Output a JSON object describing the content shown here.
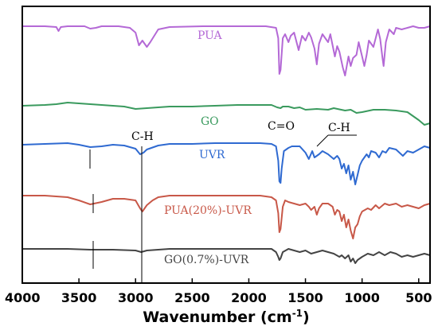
{
  "chart_data": {
    "type": "line",
    "title": "",
    "xlabel": "Wavenumber (cm",
    "xlabel_sup": "-1",
    "xlabel_end": ")",
    "ylabel": "",
    "xlim": [
      4000,
      400
    ],
    "x_ticks": [
      4000,
      3500,
      3000,
      2500,
      2000,
      1500,
      1000,
      500
    ],
    "y_axis_values_shown": false,
    "grid": false,
    "legend": "none",
    "series": [
      {
        "name": "PUA",
        "color": "#b469d6",
        "offset": 86,
        "points": [
          [
            4000,
            0
          ],
          [
            3800,
            0
          ],
          [
            3700,
            -1
          ],
          [
            3680,
            -6
          ],
          [
            3660,
            -1
          ],
          [
            3600,
            0
          ],
          [
            3450,
            0
          ],
          [
            3400,
            -3
          ],
          [
            3350,
            -2
          ],
          [
            3300,
            0
          ],
          [
            3150,
            0
          ],
          [
            3050,
            -2
          ],
          [
            3000,
            -8
          ],
          [
            2970,
            -24
          ],
          [
            2940,
            -18
          ],
          [
            2900,
            -26
          ],
          [
            2870,
            -20
          ],
          [
            2800,
            -4
          ],
          [
            2700,
            -1
          ],
          [
            2400,
            0
          ],
          [
            2000,
            0
          ],
          [
            1850,
            0
          ],
          [
            1760,
            -2
          ],
          [
            1740,
            -15
          ],
          [
            1730,
            -60
          ],
          [
            1720,
            -55
          ],
          [
            1700,
            -15
          ],
          [
            1680,
            -10
          ],
          [
            1650,
            -20
          ],
          [
            1630,
            -12
          ],
          [
            1600,
            -8
          ],
          [
            1560,
            -30
          ],
          [
            1530,
            -12
          ],
          [
            1500,
            -18
          ],
          [
            1470,
            -8
          ],
          [
            1450,
            -14
          ],
          [
            1420,
            -28
          ],
          [
            1400,
            -48
          ],
          [
            1380,
            -22
          ],
          [
            1350,
            -10
          ],
          [
            1300,
            -20
          ],
          [
            1280,
            -10
          ],
          [
            1240,
            -38
          ],
          [
            1220,
            -25
          ],
          [
            1200,
            -32
          ],
          [
            1170,
            -52
          ],
          [
            1150,
            -62
          ],
          [
            1120,
            -38
          ],
          [
            1100,
            -50
          ],
          [
            1080,
            -40
          ],
          [
            1050,
            -36
          ],
          [
            1030,
            -20
          ],
          [
            1000,
            -38
          ],
          [
            980,
            -50
          ],
          [
            960,
            -36
          ],
          [
            940,
            -18
          ],
          [
            900,
            -26
          ],
          [
            860,
            -4
          ],
          [
            840,
            -16
          ],
          [
            820,
            -40
          ],
          [
            810,
            -50
          ],
          [
            790,
            -20
          ],
          [
            760,
            -4
          ],
          [
            720,
            -10
          ],
          [
            700,
            -2
          ],
          [
            650,
            -4
          ],
          [
            600,
            -2
          ],
          [
            550,
            0
          ],
          [
            500,
            -2
          ],
          [
            450,
            -2
          ],
          [
            400,
            0
          ]
        ]
      },
      {
        "name": "GO",
        "color": "#3a9a5e",
        "offset": 14,
        "points": [
          [
            4000,
            0
          ],
          [
            3800,
            1
          ],
          [
            3700,
            2
          ],
          [
            3600,
            4
          ],
          [
            3500,
            3
          ],
          [
            3300,
            1
          ],
          [
            3100,
            -1
          ],
          [
            3000,
            -4
          ],
          [
            2900,
            -3
          ],
          [
            2700,
            -1
          ],
          [
            2500,
            -1
          ],
          [
            2300,
            0
          ],
          [
            2100,
            1
          ],
          [
            1950,
            1
          ],
          [
            1800,
            1
          ],
          [
            1750,
            -2
          ],
          [
            1720,
            -3
          ],
          [
            1700,
            -1
          ],
          [
            1650,
            -1
          ],
          [
            1600,
            -3
          ],
          [
            1550,
            -2
          ],
          [
            1500,
            -5
          ],
          [
            1400,
            -4
          ],
          [
            1300,
            -5
          ],
          [
            1250,
            -3
          ],
          [
            1150,
            -6
          ],
          [
            1100,
            -5
          ],
          [
            1050,
            -9
          ],
          [
            1000,
            -8
          ],
          [
            900,
            -5
          ],
          [
            800,
            -5
          ],
          [
            700,
            -6
          ],
          [
            600,
            -8
          ],
          [
            500,
            -18
          ],
          [
            450,
            -24
          ],
          [
            400,
            -22
          ]
        ]
      },
      {
        "name": "UVR",
        "color": "#2f6ad1",
        "offset": 4,
        "points": [
          [
            4000,
            0
          ],
          [
            3800,
            1
          ],
          [
            3600,
            2
          ],
          [
            3500,
            0
          ],
          [
            3400,
            -3
          ],
          [
            3300,
            -2
          ],
          [
            3200,
            0
          ],
          [
            3100,
            -1
          ],
          [
            3000,
            -5
          ],
          [
            2960,
            -12
          ],
          [
            2930,
            -10
          ],
          [
            2900,
            -6
          ],
          [
            2800,
            -1
          ],
          [
            2700,
            1
          ],
          [
            2500,
            1
          ],
          [
            2300,
            2
          ],
          [
            2100,
            2
          ],
          [
            1900,
            2
          ],
          [
            1800,
            1
          ],
          [
            1760,
            -2
          ],
          [
            1740,
            -20
          ],
          [
            1730,
            -46
          ],
          [
            1720,
            -48
          ],
          [
            1710,
            -30
          ],
          [
            1690,
            -8
          ],
          [
            1650,
            -4
          ],
          [
            1620,
            -2
          ],
          [
            1550,
            -2
          ],
          [
            1500,
            -10
          ],
          [
            1470,
            -18
          ],
          [
            1440,
            -8
          ],
          [
            1420,
            -16
          ],
          [
            1400,
            -14
          ],
          [
            1380,
            -12
          ],
          [
            1350,
            -8
          ],
          [
            1300,
            -12
          ],
          [
            1250,
            -18
          ],
          [
            1220,
            -14
          ],
          [
            1200,
            -18
          ],
          [
            1180,
            -30
          ],
          [
            1160,
            -24
          ],
          [
            1140,
            -36
          ],
          [
            1120,
            -26
          ],
          [
            1100,
            -44
          ],
          [
            1080,
            -34
          ],
          [
            1060,
            -50
          ],
          [
            1040,
            -38
          ],
          [
            1020,
            -26
          ],
          [
            1000,
            -20
          ],
          [
            960,
            -12
          ],
          [
            940,
            -16
          ],
          [
            920,
            -8
          ],
          [
            880,
            -10
          ],
          [
            850,
            -16
          ],
          [
            820,
            -8
          ],
          [
            790,
            -10
          ],
          [
            760,
            -4
          ],
          [
            700,
            -6
          ],
          [
            640,
            -14
          ],
          [
            600,
            -8
          ],
          [
            550,
            -10
          ],
          [
            500,
            -6
          ],
          [
            450,
            -2
          ],
          [
            400,
            -4
          ]
        ]
      },
      {
        "name": "PUA(20%)-UVR",
        "color": "#c85848",
        "offset": 0,
        "points": [
          [
            4000,
            0
          ],
          [
            3800,
            0
          ],
          [
            3600,
            -2
          ],
          [
            3500,
            -6
          ],
          [
            3400,
            -11
          ],
          [
            3300,
            -8
          ],
          [
            3200,
            -4
          ],
          [
            3100,
            -4
          ],
          [
            3000,
            -6
          ],
          [
            2960,
            -16
          ],
          [
            2940,
            -20
          ],
          [
            2900,
            -12
          ],
          [
            2850,
            -6
          ],
          [
            2800,
            -2
          ],
          [
            2700,
            0
          ],
          [
            2500,
            0
          ],
          [
            2300,
            0
          ],
          [
            2100,
            0
          ],
          [
            1900,
            0
          ],
          [
            1800,
            -2
          ],
          [
            1760,
            -6
          ],
          [
            1740,
            -22
          ],
          [
            1730,
            -46
          ],
          [
            1720,
            -42
          ],
          [
            1700,
            -14
          ],
          [
            1680,
            -6
          ],
          [
            1650,
            -8
          ],
          [
            1600,
            -10
          ],
          [
            1550,
            -12
          ],
          [
            1500,
            -10
          ],
          [
            1470,
            -14
          ],
          [
            1450,
            -18
          ],
          [
            1420,
            -14
          ],
          [
            1400,
            -24
          ],
          [
            1380,
            -16
          ],
          [
            1350,
            -10
          ],
          [
            1300,
            -10
          ],
          [
            1260,
            -14
          ],
          [
            1240,
            -24
          ],
          [
            1220,
            -18
          ],
          [
            1200,
            -20
          ],
          [
            1180,
            -32
          ],
          [
            1160,
            -24
          ],
          [
            1140,
            -40
          ],
          [
            1120,
            -30
          ],
          [
            1100,
            -44
          ],
          [
            1080,
            -54
          ],
          [
            1060,
            -40
          ],
          [
            1040,
            -36
          ],
          [
            1020,
            -26
          ],
          [
            1000,
            -20
          ],
          [
            950,
            -16
          ],
          [
            920,
            -18
          ],
          [
            880,
            -12
          ],
          [
            850,
            -16
          ],
          [
            800,
            -10
          ],
          [
            760,
            -12
          ],
          [
            700,
            -10
          ],
          [
            650,
            -14
          ],
          [
            600,
            -12
          ],
          [
            550,
            -14
          ],
          [
            500,
            -16
          ],
          [
            450,
            -12
          ],
          [
            400,
            -10
          ]
        ]
      },
      {
        "name": "GO(0.7%)-UVR",
        "color": "#444444",
        "offset": -50,
        "points": [
          [
            4000,
            0
          ],
          [
            3800,
            0
          ],
          [
            3600,
            0
          ],
          [
            3400,
            -1
          ],
          [
            3200,
            -1
          ],
          [
            3000,
            -2
          ],
          [
            2950,
            -4
          ],
          [
            2900,
            -2
          ],
          [
            2700,
            0
          ],
          [
            2500,
            0
          ],
          [
            2300,
            0
          ],
          [
            2100,
            0
          ],
          [
            1900,
            0
          ],
          [
            1800,
            0
          ],
          [
            1760,
            -4
          ],
          [
            1740,
            -10
          ],
          [
            1730,
            -14
          ],
          [
            1720,
            -12
          ],
          [
            1700,
            -4
          ],
          [
            1650,
            0
          ],
          [
            1600,
            -2
          ],
          [
            1550,
            -4
          ],
          [
            1500,
            -2
          ],
          [
            1450,
            -6
          ],
          [
            1400,
            -4
          ],
          [
            1350,
            -2
          ],
          [
            1300,
            -4
          ],
          [
            1250,
            -6
          ],
          [
            1200,
            -10
          ],
          [
            1180,
            -8
          ],
          [
            1150,
            -12
          ],
          [
            1120,
            -8
          ],
          [
            1100,
            -16
          ],
          [
            1080,
            -12
          ],
          [
            1060,
            -18
          ],
          [
            1040,
            -14
          ],
          [
            1000,
            -10
          ],
          [
            950,
            -6
          ],
          [
            900,
            -8
          ],
          [
            850,
            -4
          ],
          [
            800,
            -8
          ],
          [
            750,
            -4
          ],
          [
            700,
            -6
          ],
          [
            650,
            -10
          ],
          [
            600,
            -8
          ],
          [
            550,
            -10
          ],
          [
            500,
            -8
          ],
          [
            450,
            -6
          ],
          [
            400,
            -8
          ]
        ]
      }
    ],
    "annotations": [
      "C-H",
      "C=O",
      "C-H"
    ]
  }
}
